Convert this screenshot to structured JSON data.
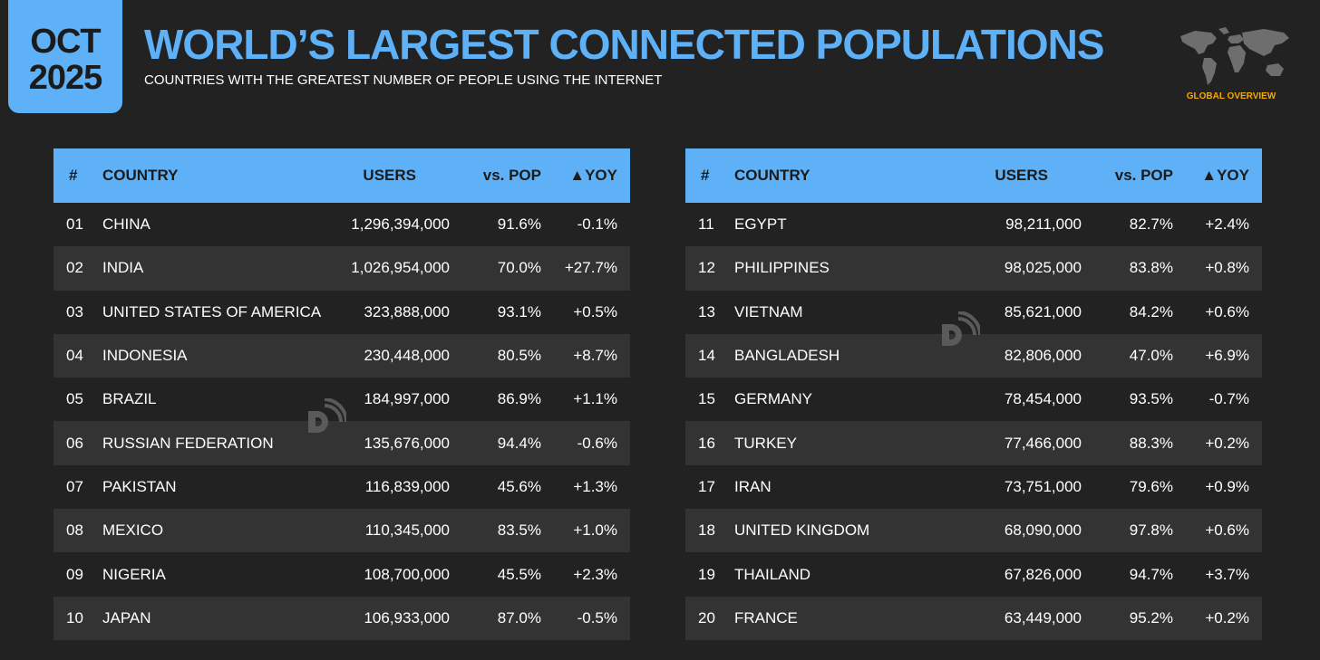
{
  "badge": {
    "month": "OCT",
    "year": "2025"
  },
  "title": "WORLD’S LARGEST CONNECTED POPULATIONS",
  "subtitle": "COUNTRIES WITH THE GREATEST NUMBER OF PEOPLE USING THE INTERNET",
  "logo_label": "GLOBAL OVERVIEW",
  "colors": {
    "accent": "#5eb1f7",
    "background": "#222222",
    "row_alt": "#333333",
    "logo_label": "#f5a800"
  },
  "icons": {
    "map": "world-map-icon",
    "watermark": "datareportal-logo-icon"
  },
  "headers": {
    "rank": "#",
    "country": "COUNTRY",
    "users": "USERS",
    "pop": "vs. POP",
    "yoy": "▲YOY"
  },
  "left_rows": [
    {
      "rank": "01",
      "country": "CHINA",
      "users": "1,296,394,000",
      "pop": "91.6%",
      "yoy": "-0.1%"
    },
    {
      "rank": "02",
      "country": "INDIA",
      "users": "1,026,954,000",
      "pop": "70.0%",
      "yoy": "+27.7%"
    },
    {
      "rank": "03",
      "country": "UNITED STATES OF AMERICA",
      "users": "323,888,000",
      "pop": "93.1%",
      "yoy": "+0.5%"
    },
    {
      "rank": "04",
      "country": "INDONESIA",
      "users": "230,448,000",
      "pop": "80.5%",
      "yoy": "+8.7%"
    },
    {
      "rank": "05",
      "country": "BRAZIL",
      "users": "184,997,000",
      "pop": "86.9%",
      "yoy": "+1.1%"
    },
    {
      "rank": "06",
      "country": "RUSSIAN FEDERATION",
      "users": "135,676,000",
      "pop": "94.4%",
      "yoy": "-0.6%"
    },
    {
      "rank": "07",
      "country": "PAKISTAN",
      "users": "116,839,000",
      "pop": "45.6%",
      "yoy": "+1.3%"
    },
    {
      "rank": "08",
      "country": "MEXICO",
      "users": "110,345,000",
      "pop": "83.5%",
      "yoy": "+1.0%"
    },
    {
      "rank": "09",
      "country": "NIGERIA",
      "users": "108,700,000",
      "pop": "45.5%",
      "yoy": "+2.3%"
    },
    {
      "rank": "10",
      "country": "JAPAN",
      "users": "106,933,000",
      "pop": "87.0%",
      "yoy": "-0.5%"
    }
  ],
  "right_rows": [
    {
      "rank": "11",
      "country": "EGYPT",
      "users": "98,211,000",
      "pop": "82.7%",
      "yoy": "+2.4%"
    },
    {
      "rank": "12",
      "country": "PHILIPPINES",
      "users": "98,025,000",
      "pop": "83.8%",
      "yoy": "+0.8%"
    },
    {
      "rank": "13",
      "country": "VIETNAM",
      "users": "85,621,000",
      "pop": "84.2%",
      "yoy": "+0.6%"
    },
    {
      "rank": "14",
      "country": "BANGLADESH",
      "users": "82,806,000",
      "pop": "47.0%",
      "yoy": "+6.9%"
    },
    {
      "rank": "15",
      "country": "GERMANY",
      "users": "78,454,000",
      "pop": "93.5%",
      "yoy": "-0.7%"
    },
    {
      "rank": "16",
      "country": "TURKEY",
      "users": "77,466,000",
      "pop": "88.3%",
      "yoy": "+0.2%"
    },
    {
      "rank": "17",
      "country": "IRAN",
      "users": "73,751,000",
      "pop": "79.6%",
      "yoy": "+0.9%"
    },
    {
      "rank": "18",
      "country": "UNITED KINGDOM",
      "users": "68,090,000",
      "pop": "97.8%",
      "yoy": "+0.6%"
    },
    {
      "rank": "19",
      "country": "THAILAND",
      "users": "67,826,000",
      "pop": "94.7%",
      "yoy": "+3.7%"
    },
    {
      "rank": "20",
      "country": "FRANCE",
      "users": "63,449,000",
      "pop": "95.2%",
      "yoy": "+0.2%"
    }
  ]
}
